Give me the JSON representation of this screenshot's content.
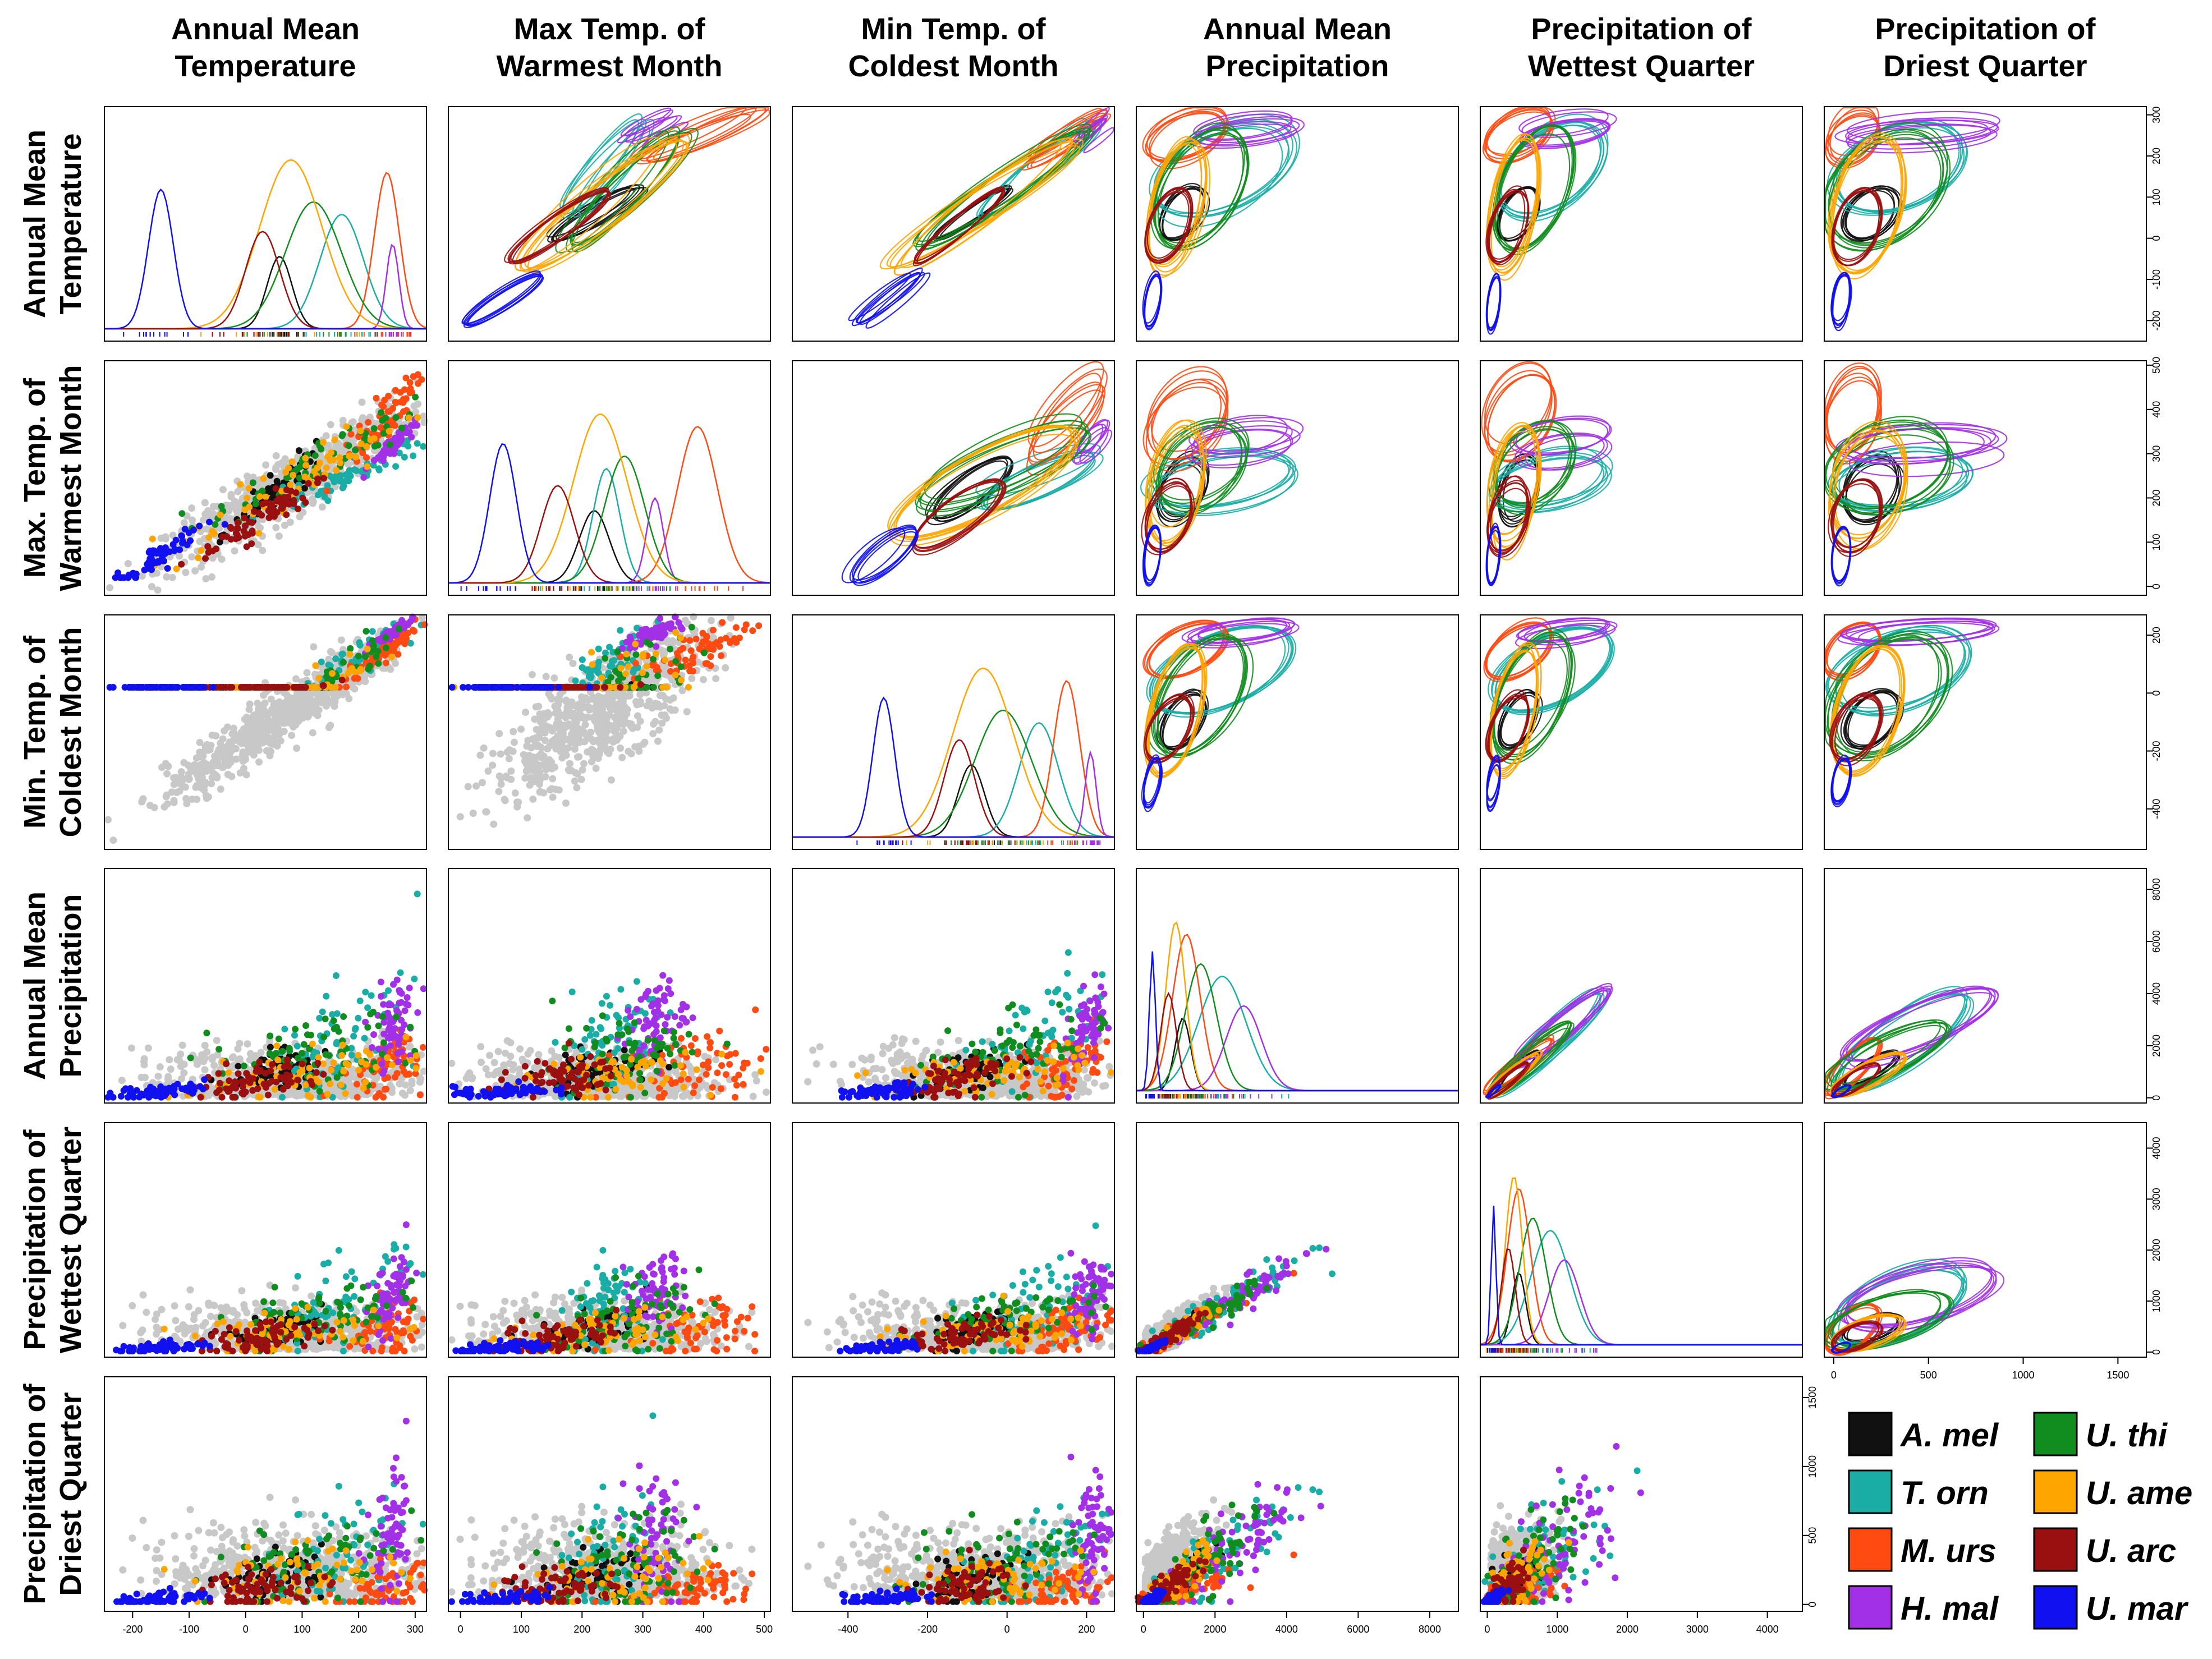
{
  "chart_data": {
    "type": "scatter",
    "title": "",
    "variables": [
      {
        "column_title": [
          "Annual Mean",
          "Temperature"
        ],
        "row_title": [
          "Annual Mean",
          "Temperature"
        ],
        "range": [
          -250,
          320
        ],
        "ticks": [
          -200,
          -100,
          0,
          100,
          200,
          300
        ]
      },
      {
        "column_title": [
          "Max Temp. of",
          "Warmest Month"
        ],
        "row_title": [
          "Max. Temp. of",
          "Warmest Month"
        ],
        "range": [
          -20,
          510
        ],
        "ticks": [
          0,
          100,
          200,
          300,
          400,
          500
        ]
      },
      {
        "column_title": [
          "Min Temp. of",
          "Coldest Month"
        ],
        "row_title": [
          "Min. Temp. of",
          "Coldest Month"
        ],
        "range": [
          -540,
          270
        ],
        "ticks": [
          -400,
          -200,
          0,
          200
        ]
      },
      {
        "column_title": [
          "Annual Mean",
          "Precipitation"
        ],
        "row_title": [
          "Annual Mean",
          "Precipitation"
        ],
        "range": [
          -200,
          8800
        ],
        "ticks": [
          0,
          2000,
          4000,
          6000,
          8000
        ]
      },
      {
        "column_title": [
          "Precipitation of",
          "Wettest Quarter"
        ],
        "row_title": [
          "Precipitation of",
          "Wettest Quarter"
        ],
        "range": [
          -100,
          4500
        ],
        "ticks": [
          0,
          1000,
          2000,
          3000,
          4000
        ]
      },
      {
        "column_title": [
          "Precipitation of",
          "Driest Quarter"
        ],
        "row_title": [
          "Precipitation of",
          "Driest Quarter"
        ],
        "range": [
          -50,
          1650
        ],
        "ticks": [
          0,
          500,
          1000,
          1500
        ]
      }
    ],
    "lower_panels": "scatter of occurrence points per species over grey background",
    "diagonal_panels": "density curves per species",
    "upper_panels": "bootstrap ellipses per species",
    "legend_position": "bottom-right",
    "series": [
      {
        "name": "A. mel",
        "color": "#111111",
        "mean": [
          60,
          220,
          -90,
          1100,
          450,
          200
        ],
        "sd": [
          40,
          45,
          60,
          400,
          180,
          90
        ]
      },
      {
        "name": "T. orn",
        "color": "#1aada6",
        "mean": [
          170,
          240,
          80,
          2200,
          900,
          350
        ],
        "sd": [
          70,
          40,
          90,
          1200,
          500,
          220
        ]
      },
      {
        "name": "M. urs",
        "color": "#ff4a12",
        "mean": [
          250,
          390,
          150,
          1200,
          450,
          100
        ],
        "sd": [
          40,
          60,
          60,
          700,
          300,
          90
        ]
      },
      {
        "name": "H. mal",
        "color": "#a230e6",
        "mean": [
          260,
          320,
          210,
          2800,
          1100,
          450
        ],
        "sd": [
          20,
          25,
          25,
          900,
          400,
          250
        ]
      },
      {
        "name": "U. thi",
        "color": "#118c1e",
        "mean": [
          120,
          270,
          -10,
          1600,
          650,
          280
        ],
        "sd": [
          90,
          60,
          130,
          800,
          350,
          200
        ]
      },
      {
        "name": "U. ame",
        "color": "#ffa500",
        "mean": [
          80,
          230,
          -60,
          900,
          380,
          180
        ],
        "sd": [
          100,
          80,
          140,
          500,
          220,
          120
        ]
      },
      {
        "name": "U. arc",
        "color": "#9a1010",
        "mean": [
          30,
          160,
          -120,
          700,
          300,
          120
        ],
        "sd": [
          55,
          50,
          70,
          400,
          180,
          80
        ]
      },
      {
        "name": "U. mar",
        "color": "#1010f0",
        "mean": [
          -150,
          70,
          -310,
          250,
          90,
          40
        ],
        "sd": [
          40,
          40,
          50,
          150,
          60,
          30
        ]
      }
    ]
  }
}
